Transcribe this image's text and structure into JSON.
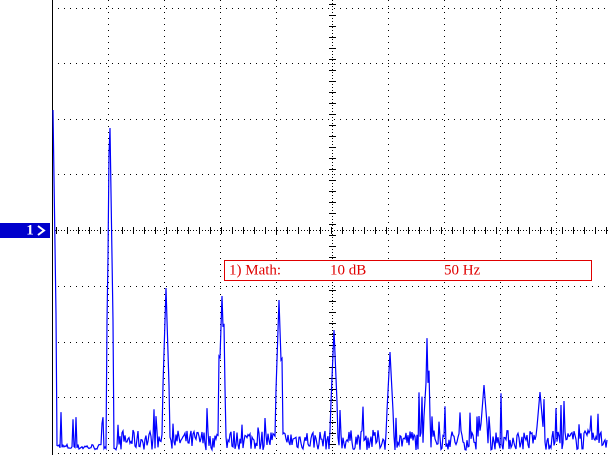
{
  "channel_marker": "1",
  "readout": {
    "source": "1) Math:",
    "scale": "10 dB",
    "frequency": "50 Hz"
  }
}
